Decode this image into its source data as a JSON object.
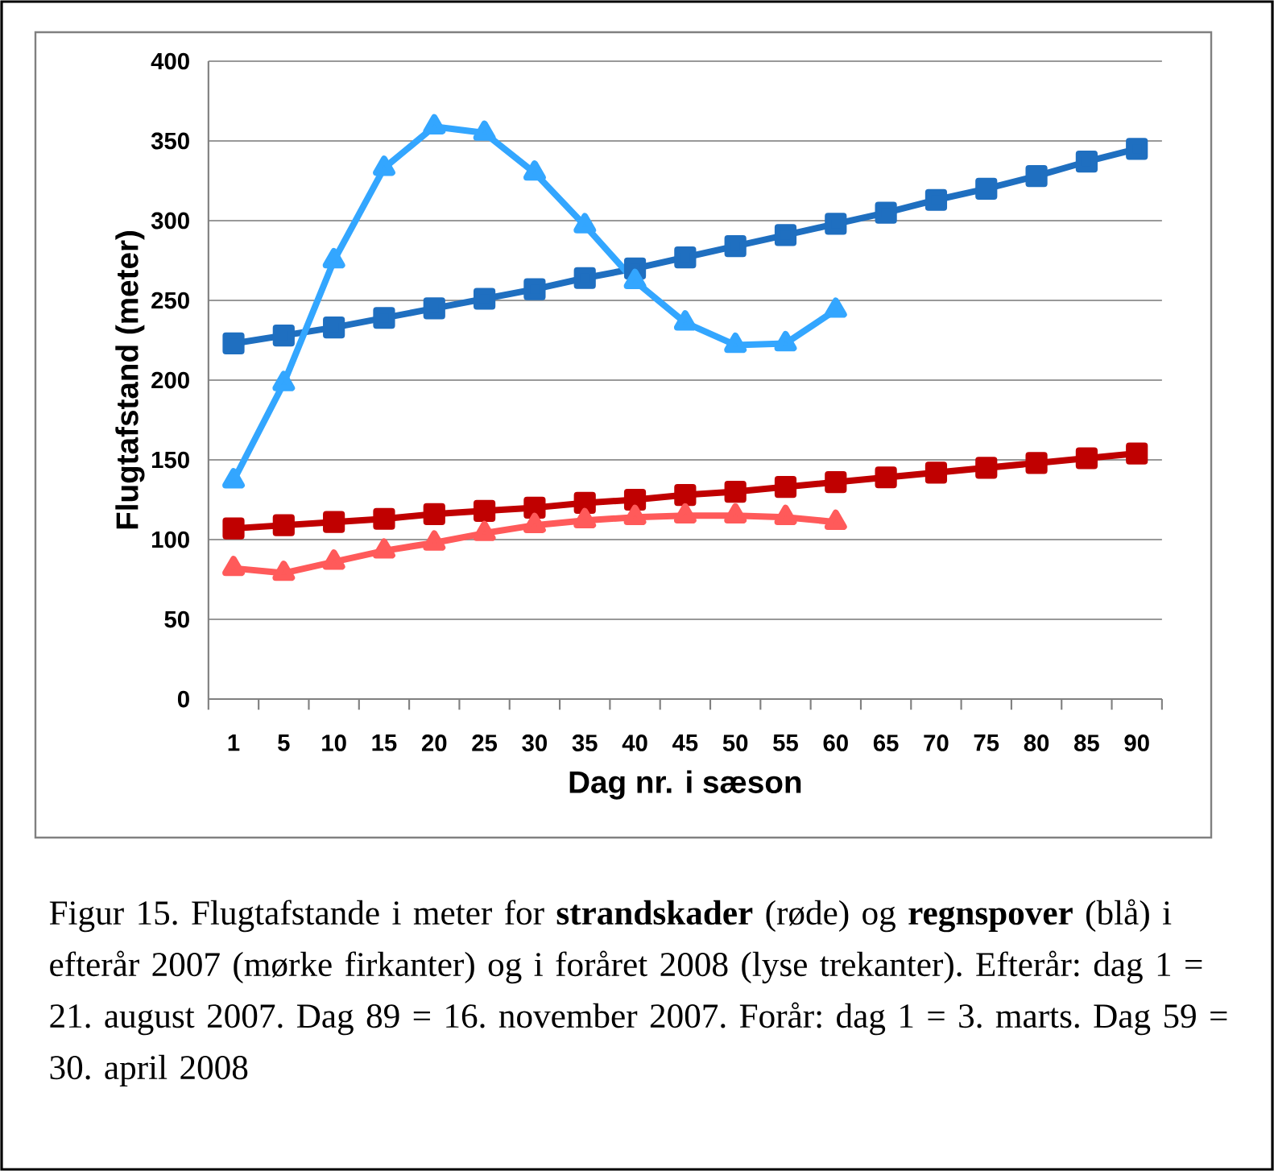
{
  "chart_data": {
    "type": "line",
    "xlabel": "Dag nr. i sæson",
    "ylabel": "Flugtafstand (meter)",
    "categories": [
      "1",
      "5",
      "10",
      "15",
      "20",
      "25",
      "30",
      "35",
      "40",
      "45",
      "50",
      "55",
      "60",
      "65",
      "70",
      "75",
      "80",
      "85",
      "90"
    ],
    "ylim": [
      0,
      400
    ],
    "yticks": [
      0,
      50,
      100,
      150,
      200,
      250,
      300,
      350,
      400
    ],
    "grid": "y",
    "line_style": "solid",
    "series": [
      {
        "color": "#1f6fc0",
        "marker": "square",
        "values": [
          223,
          228,
          233,
          239,
          245,
          251,
          257,
          264,
          270,
          277,
          284,
          291,
          298,
          305,
          313,
          320,
          328,
          337,
          345
        ]
      },
      {
        "color": "#33a6ff",
        "marker": "triangle",
        "values": [
          137,
          198,
          275,
          333,
          359,
          355,
          330,
          297,
          262,
          236,
          222,
          223,
          244,
          null,
          null,
          null,
          null,
          null,
          null
        ]
      },
      {
        "color": "#c00000",
        "marker": "square",
        "values": [
          107,
          109,
          111,
          113,
          116,
          118,
          120,
          123,
          125,
          128,
          130,
          133,
          136,
          139,
          142,
          145,
          148,
          151,
          154
        ]
      },
      {
        "color": "#ff5a5a",
        "marker": "triangle",
        "values": [
          82,
          79,
          86,
          93,
          98,
          104,
          109,
          112,
          114,
          115,
          115,
          114,
          111,
          null,
          null,
          null,
          null,
          null,
          null
        ]
      }
    ],
    "annotations": [
      "Figur 15. Flugtafstande i meter for **strandskader** (røde) og **regnspover** (blå) i efterår 2007 (mørke firkanter) og i foråret 2008 (lyse trekanter). Efterår: dag 1 = 21. august 2007. Dag 89 = 16. november 2007. Forår: dag 1 = 3. marts. Dag 59 = 30. april 2008"
    ]
  }
}
